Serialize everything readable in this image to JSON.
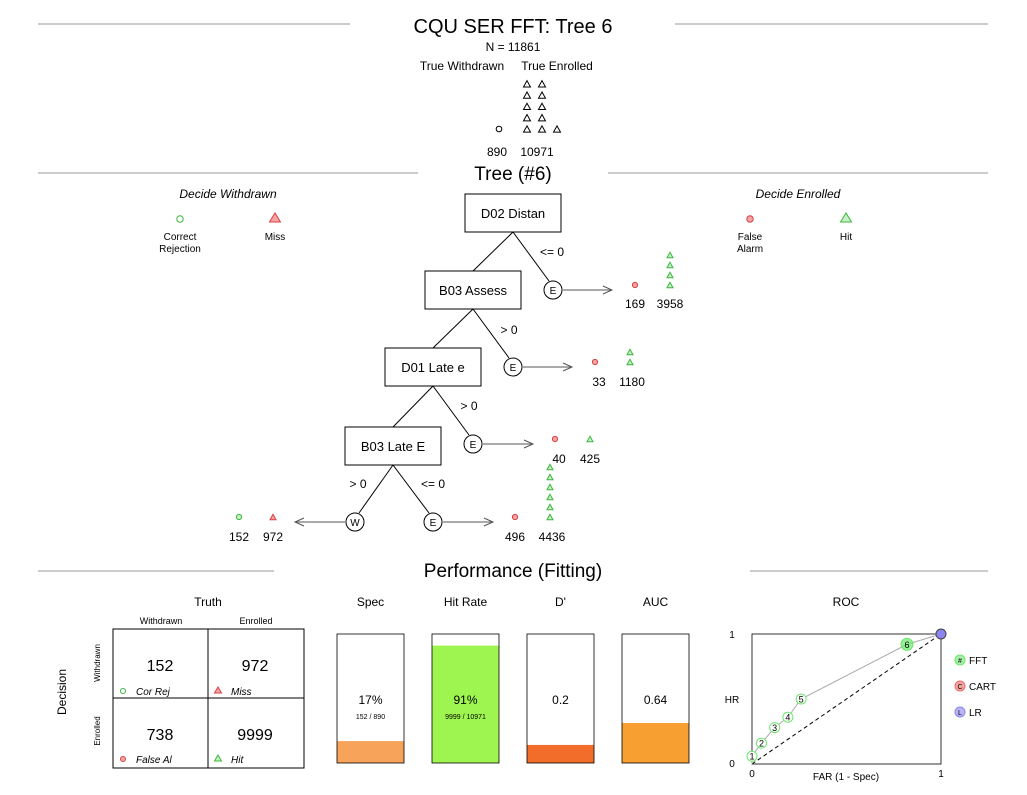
{
  "title": "CQU SER FFT: Tree 6",
  "n_label": "N = 11861",
  "truth": {
    "labels": [
      "True Withdrawn",
      "True Enrolled"
    ],
    "counts": [
      "890",
      "10971"
    ],
    "colors": {
      "withdrawn": "#000000",
      "enrolled": "#000000"
    }
  },
  "tree_title": "Tree (#6)",
  "decide_withdrawn": "Decide Withdrawn",
  "decide_enrolled": "Decide Enrolled",
  "legend_left": [
    "Correct\nRejection",
    "Miss"
  ],
  "legend_right": [
    "False\nAlarm",
    "Hit"
  ],
  "nodes": [
    {
      "label": "D02 Distan",
      "condition": "<= 0",
      "exit": "E",
      "counts": [
        "169",
        "3958"
      ]
    },
    {
      "label": "B03 Assess",
      "condition": "> 0",
      "exit": "E",
      "counts": [
        "33",
        "1180"
      ]
    },
    {
      "label": "D01 Late e",
      "condition": "> 0",
      "exit": "E",
      "counts": [
        "40",
        "425"
      ]
    },
    {
      "label": "B03 Late E",
      "condition": "<= 0",
      "exit": "E",
      "counts": [
        "496",
        "4436"
      ]
    }
  ],
  "final_w": {
    "condition": "> 0",
    "exit": "W",
    "counts": [
      "152",
      "972"
    ]
  },
  "performance": {
    "title": "Performance (Fitting)",
    "truth_label": "Truth",
    "decision_label": "Decision",
    "col_labels": [
      "Withdrawn",
      "Enrolled"
    ],
    "row_labels": [
      "Withdrawn",
      "Enrolled"
    ],
    "cells": [
      {
        "value": "152",
        "label": "Cor Rej"
      },
      {
        "value": "972",
        "label": "Miss"
      },
      {
        "value": "738",
        "label": "False Al"
      },
      {
        "value": "9999",
        "label": "Hit"
      }
    ],
    "bars": [
      {
        "title": "Spec",
        "value": "17%",
        "sub": "152 / 890",
        "fraction": 0.17,
        "color": "#f7a35a"
      },
      {
        "title": "Hit Rate",
        "value": "91%",
        "sub": "9999 / 10971",
        "fraction": 0.91,
        "color": "#9ff54f"
      },
      {
        "title": "D'",
        "value": "0.2",
        "sub": "",
        "fraction": 0.14,
        "color": "#f26d2a"
      },
      {
        "title": "AUC",
        "value": "0.64",
        "sub": "",
        "fraction": 0.31,
        "color": "#f7a031"
      }
    ],
    "roc": {
      "title": "ROC",
      "xlabel": "FAR (1 - Spec)",
      "ylabel": "HR",
      "ticks": [
        "0",
        "1"
      ],
      "points": [
        {
          "label": "1",
          "x": 0.0,
          "y": 0.06
        },
        {
          "label": "2",
          "x": 0.05,
          "y": 0.16
        },
        {
          "label": "3",
          "x": 0.12,
          "y": 0.28
        },
        {
          "label": "4",
          "x": 0.19,
          "y": 0.36
        },
        {
          "label": "5",
          "x": 0.26,
          "y": 0.5
        },
        {
          "label": "6",
          "x": 0.82,
          "y": 0.92
        }
      ],
      "lr_point": {
        "x": 1.0,
        "y": 1.0
      },
      "legend": [
        "FFT",
        "CART",
        "LR"
      ],
      "legend_symbols": [
        "#",
        "C",
        "L"
      ],
      "colors": {
        "fft": "#6be86b",
        "cart": "#f06a6a",
        "lr": "#8b84f0"
      }
    }
  }
}
